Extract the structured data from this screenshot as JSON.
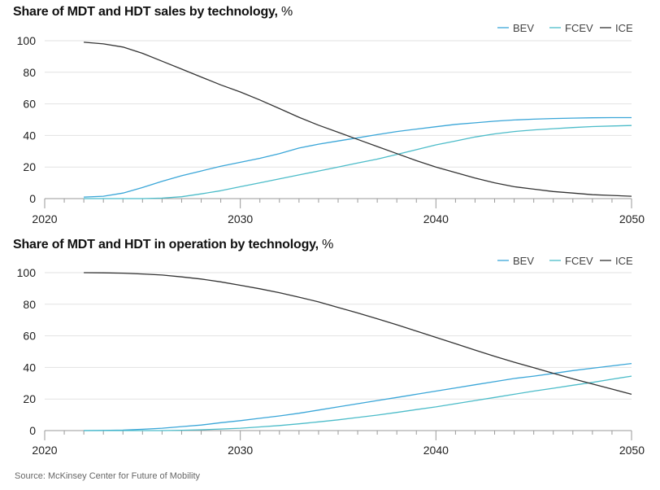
{
  "chart_data": [
    {
      "type": "line",
      "title": "Share of MDT and HDT sales by technology,",
      "unit": "%",
      "xlabel": "",
      "ylabel": "",
      "xlim": [
        2020,
        2050
      ],
      "ylim": [
        0,
        100
      ],
      "x_ticks": [
        2020,
        2030,
        2040,
        2050
      ],
      "y_ticks": [
        0,
        20,
        40,
        60,
        80,
        100
      ],
      "grid": true,
      "legend": "top-right",
      "x": [
        2022,
        2023,
        2024,
        2025,
        2026,
        2027,
        2028,
        2029,
        2030,
        2031,
        2032,
        2033,
        2034,
        2035,
        2036,
        2037,
        2038,
        2039,
        2040,
        2041,
        2042,
        2043,
        2044,
        2045,
        2046,
        2047,
        2048,
        2049,
        2050
      ],
      "series": [
        {
          "name": "BEV",
          "color": "#3aa6d8",
          "values": [
            1,
            1.5,
            3.5,
            7,
            11,
            14.5,
            17.5,
            20.5,
            23,
            25.5,
            28.5,
            32,
            34.5,
            36.5,
            38.5,
            40.5,
            42.5,
            44,
            45.5,
            47,
            48,
            49,
            49.8,
            50.3,
            50.7,
            51,
            51.2,
            51.3,
            51.3
          ]
        },
        {
          "name": "FCEV",
          "color": "#4cbcc9",
          "values": [
            0,
            0,
            0,
            0,
            0.3,
            1.2,
            3,
            5,
            7.5,
            10,
            12.5,
            15,
            17.5,
            20,
            22.5,
            25,
            28,
            31,
            34,
            36.5,
            39,
            41,
            42.5,
            43.5,
            44.3,
            45,
            45.6,
            46,
            46.3
          ]
        },
        {
          "name": "ICE",
          "color": "#333333",
          "values": [
            99,
            98,
            96,
            92,
            87,
            82,
            77,
            72,
            67.5,
            62.5,
            57,
            51.5,
            46.5,
            42,
            37.5,
            33,
            28.5,
            24,
            20,
            16.5,
            13,
            10,
            7.5,
            6,
            4.5,
            3.5,
            2.5,
            2,
            1.5
          ]
        }
      ]
    },
    {
      "type": "line",
      "title": "Share of MDT and HDT in operation by technology,",
      "unit": "%",
      "xlabel": "",
      "ylabel": "",
      "xlim": [
        2020,
        2050
      ],
      "ylim": [
        0,
        100
      ],
      "x_ticks": [
        2020,
        2030,
        2040,
        2050
      ],
      "y_ticks": [
        0,
        20,
        40,
        60,
        80,
        100
      ],
      "grid": true,
      "legend": "top-right",
      "x": [
        2022,
        2023,
        2024,
        2025,
        2026,
        2027,
        2028,
        2029,
        2030,
        2031,
        2032,
        2033,
        2034,
        2035,
        2036,
        2037,
        2038,
        2039,
        2040,
        2041,
        2042,
        2043,
        2044,
        2045,
        2046,
        2047,
        2048,
        2049,
        2050
      ],
      "series": [
        {
          "name": "BEV",
          "color": "#3aa6d8",
          "values": [
            0,
            0.1,
            0.3,
            0.8,
            1.5,
            2.5,
            3.5,
            5,
            6.3,
            7.8,
            9.3,
            11,
            13,
            15,
            17,
            19,
            21,
            23,
            25,
            27,
            29,
            31,
            33,
            34.5,
            36.2,
            38,
            39.5,
            41,
            42.5
          ]
        },
        {
          "name": "FCEV",
          "color": "#4cbcc9",
          "values": [
            0,
            0,
            0,
            0,
            0,
            0.2,
            0.5,
            1,
            1.5,
            2.3,
            3.2,
            4.3,
            5.5,
            6.8,
            8.3,
            9.8,
            11.5,
            13.3,
            15,
            17,
            19,
            21,
            23,
            25,
            26.8,
            28.7,
            30.5,
            32.5,
            34.5
          ]
        },
        {
          "name": "ICE",
          "color": "#333333",
          "values": [
            100,
            99.9,
            99.7,
            99.2,
            98.5,
            97.3,
            96,
            94.2,
            92,
            89.8,
            87.3,
            84.5,
            81.5,
            78,
            74.5,
            70.8,
            67,
            63,
            59,
            55,
            51,
            47,
            43.3,
            39.8,
            36.3,
            32.8,
            29.5,
            26.3,
            23
          ]
        }
      ]
    }
  ],
  "source": "Source: McKinsey Center for Future of Mobility"
}
